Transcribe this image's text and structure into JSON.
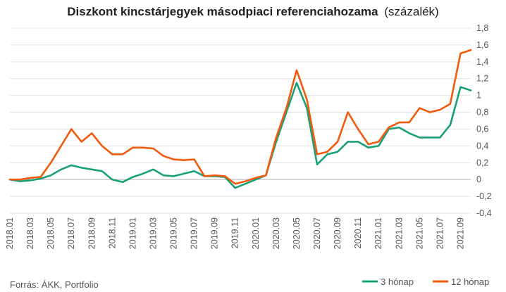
{
  "chart_data": {
    "type": "line",
    "title": "Diszkont kincstárjegyek másodpiaci referenciahozama",
    "subtitle": "(százalék)",
    "source": "Forrás: ÁKK, Portfolio",
    "x_start": "2018.01",
    "x_end": "2021.10",
    "x_ticks": [
      "2018.01",
      "2018.03",
      "2018.05",
      "2018.07",
      "2018.09",
      "2018.11",
      "2019.01",
      "2019.03",
      "2019.05",
      "2019.07",
      "2019.09",
      "2019.11",
      "2020.01",
      "2020.03",
      "2020.05",
      "2020.07",
      "2020.09",
      "2020.11",
      "2021.01",
      "2021.03",
      "2021.05",
      "2021.07",
      "2021.09"
    ],
    "y_ticks": [
      "1,8",
      "1,6",
      "1,4",
      "1,2",
      "1",
      "0,8",
      "0,6",
      "0,4",
      "0,2",
      "0",
      "-0,2",
      "-0,4"
    ],
    "ylim": [
      -0.4,
      1.8
    ],
    "grid": true,
    "legend_position": "bottom-right",
    "series": [
      {
        "name": "3 hónap",
        "color": "#1aa079",
        "points": [
          [
            "2018.01",
            0.0
          ],
          [
            "2018.02",
            -0.02
          ],
          [
            "2018.03",
            -0.01
          ],
          [
            "2018.04",
            0.01
          ],
          [
            "2018.05",
            0.05
          ],
          [
            "2018.06",
            0.12
          ],
          [
            "2018.07",
            0.17
          ],
          [
            "2018.08",
            0.14
          ],
          [
            "2018.09",
            0.12
          ],
          [
            "2018.10",
            0.1
          ],
          [
            "2018.11",
            0.0
          ],
          [
            "2018.12",
            -0.03
          ],
          [
            "2019.01",
            0.03
          ],
          [
            "2019.02",
            0.07
          ],
          [
            "2019.03",
            0.12
          ],
          [
            "2019.04",
            0.05
          ],
          [
            "2019.05",
            0.04
          ],
          [
            "2019.06",
            0.07
          ],
          [
            "2019.07",
            0.1
          ],
          [
            "2019.08",
            0.04
          ],
          [
            "2019.09",
            0.04
          ],
          [
            "2019.10",
            0.03
          ],
          [
            "2019.11",
            -0.1
          ],
          [
            "2019.12",
            -0.05
          ],
          [
            "2020.01",
            0.0
          ],
          [
            "2020.02",
            0.05
          ],
          [
            "2020.03",
            0.45
          ],
          [
            "2020.04",
            0.8
          ],
          [
            "2020.05",
            1.15
          ],
          [
            "2020.06",
            0.85
          ],
          [
            "2020.07",
            0.18
          ],
          [
            "2020.08",
            0.3
          ],
          [
            "2020.09",
            0.33
          ],
          [
            "2020.10",
            0.45
          ],
          [
            "2020.11",
            0.45
          ],
          [
            "2020.12",
            0.38
          ],
          [
            "2021.01",
            0.4
          ],
          [
            "2021.02",
            0.6
          ],
          [
            "2021.03",
            0.62
          ],
          [
            "2021.04",
            0.55
          ],
          [
            "2021.05",
            0.5
          ],
          [
            "2021.06",
            0.5
          ],
          [
            "2021.07",
            0.5
          ],
          [
            "2021.08",
            0.65
          ],
          [
            "2021.09",
            1.1
          ],
          [
            "2021.10",
            1.06
          ]
        ]
      },
      {
        "name": "12 hónap",
        "color": "#f25a0e",
        "points": [
          [
            "2018.01",
            0.0
          ],
          [
            "2018.02",
            0.0
          ],
          [
            "2018.03",
            0.02
          ],
          [
            "2018.04",
            0.03
          ],
          [
            "2018.05",
            0.2
          ],
          [
            "2018.06",
            0.4
          ],
          [
            "2018.07",
            0.6
          ],
          [
            "2018.08",
            0.45
          ],
          [
            "2018.09",
            0.55
          ],
          [
            "2018.10",
            0.4
          ],
          [
            "2018.11",
            0.3
          ],
          [
            "2018.12",
            0.3
          ],
          [
            "2019.01",
            0.38
          ],
          [
            "2019.02",
            0.38
          ],
          [
            "2019.03",
            0.37
          ],
          [
            "2019.04",
            0.28
          ],
          [
            "2019.05",
            0.24
          ],
          [
            "2019.06",
            0.23
          ],
          [
            "2019.07",
            0.24
          ],
          [
            "2019.08",
            0.04
          ],
          [
            "2019.09",
            0.05
          ],
          [
            "2019.10",
            0.04
          ],
          [
            "2019.11",
            -0.05
          ],
          [
            "2019.12",
            -0.02
          ],
          [
            "2020.01",
            0.02
          ],
          [
            "2020.02",
            0.05
          ],
          [
            "2020.03",
            0.5
          ],
          [
            "2020.04",
            0.85
          ],
          [
            "2020.05",
            1.3
          ],
          [
            "2020.06",
            0.95
          ],
          [
            "2020.07",
            0.3
          ],
          [
            "2020.08",
            0.33
          ],
          [
            "2020.09",
            0.45
          ],
          [
            "2020.10",
            0.8
          ],
          [
            "2020.11",
            0.6
          ],
          [
            "2020.12",
            0.42
          ],
          [
            "2021.01",
            0.45
          ],
          [
            "2021.02",
            0.62
          ],
          [
            "2021.03",
            0.68
          ],
          [
            "2021.04",
            0.68
          ],
          [
            "2021.05",
            0.85
          ],
          [
            "2021.06",
            0.8
          ],
          [
            "2021.07",
            0.83
          ],
          [
            "2021.08",
            0.9
          ],
          [
            "2021.09",
            1.5
          ],
          [
            "2021.10",
            1.54
          ]
        ]
      }
    ]
  }
}
